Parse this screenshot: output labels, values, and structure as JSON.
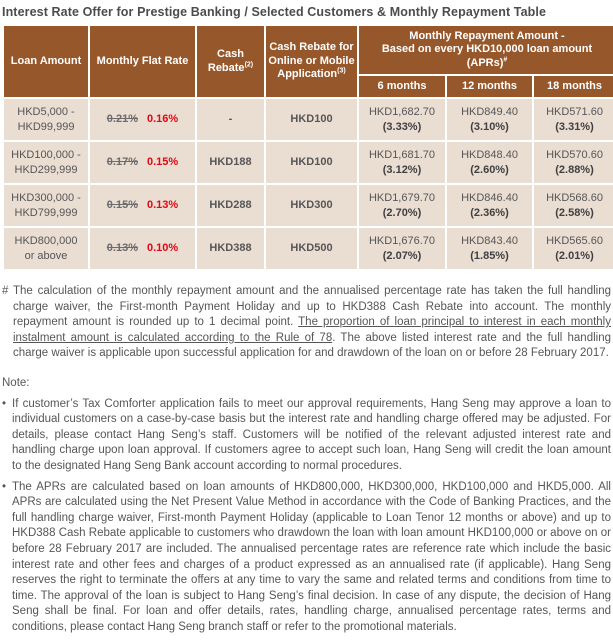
{
  "title": "Interest Rate Offer for Prestige Banking / Selected Customers & Monthly Repayment Table",
  "colors": {
    "header_brown": "#96572A",
    "cell_bg": "#EADDD1",
    "rate_red": "#E30613"
  },
  "table": {
    "headers": {
      "loan_amount": "Loan Amount",
      "monthly_flat_rate": "Monthly Flat Rate",
      "cash_rebate": "Cash Rebate",
      "cash_rebate_sup": "(2)",
      "cash_rebate_online": "Cash Rebate for Online or Mobile Application",
      "cash_rebate_online_sup": "(3)",
      "repayment_title_line1": "Monthly Repayment Amount -",
      "repayment_title_line2": "Based on every HKD10,000 loan amount",
      "repayment_title_line3": "(APRs)",
      "repayment_title_sup": "#",
      "tenors": [
        "6 months",
        "12 months",
        "18 months"
      ]
    },
    "rows": [
      {
        "loan": [
          "HKD5,000 -",
          "HKD99,999"
        ],
        "rate_old": "0.21%",
        "rate_new": "0.16%",
        "cash_rebate": "-",
        "online_rebate": "HKD100",
        "m6": {
          "amount": "HKD1,682.70",
          "apr": "(3.33%)"
        },
        "m12": {
          "amount": "HKD849.40",
          "apr": "(3.10%)"
        },
        "m18": {
          "amount": "HKD571.60",
          "apr": "(3.31%)"
        }
      },
      {
        "loan": [
          "HKD100,000 -",
          "HKD299,999"
        ],
        "rate_old": "0.17%",
        "rate_new": "0.15%",
        "cash_rebate": "HKD188",
        "online_rebate": "HKD100",
        "m6": {
          "amount": "HKD1,681.70",
          "apr": "(3.12%)"
        },
        "m12": {
          "amount": "HKD848.40",
          "apr": "(2.60%)"
        },
        "m18": {
          "amount": "HKD570.60",
          "apr": "(2.88%)"
        }
      },
      {
        "loan": [
          "HKD300,000 -",
          "HKD799,999"
        ],
        "rate_old": "0.15%",
        "rate_new": "0.13%",
        "cash_rebate": "HKD288",
        "online_rebate": "HKD300",
        "m6": {
          "amount": "HKD1,679.70",
          "apr": "(2.70%)"
        },
        "m12": {
          "amount": "HKD846.40",
          "apr": "(2.36%)"
        },
        "m18": {
          "amount": "HKD568.60",
          "apr": "(2.58%)"
        }
      },
      {
        "loan": [
          "HKD800,000",
          "or above"
        ],
        "rate_old": "0.13%",
        "rate_new": "0.10%",
        "cash_rebate": "HKD388",
        "online_rebate": "HKD500",
        "m6": {
          "amount": "HKD1,676.70",
          "apr": "(2.07%)"
        },
        "m12": {
          "amount": "HKD843.40",
          "apr": "(1.85%)"
        },
        "m18": {
          "amount": "HKD565.60",
          "apr": "(2.01%)"
        }
      }
    ]
  },
  "footnote": {
    "marker": "#",
    "text_before": "The calculation of the monthly repayment amount and the annualised percentage rate has taken the full handling charge waiver, the First-month Payment Holiday and up to HKD388 Cash Rebate into account. The monthly repayment amount is rounded up to 1 decimal point. ",
    "text_underlined": "The proportion of loan principal to interest in each monthly instalment amount is calculated according to the Rule of 78",
    "text_after": ". The above listed interest rate and the full handling charge waiver is applicable upon successful application for and drawdown of the loan on or before 28 February 2017."
  },
  "note": {
    "label": "Note:",
    "bullets": [
      {
        "marker": "•",
        "text": "If customer’s Tax Comforter application fails to meet our approval requirements, Hang Seng may approve a loan to individual customers on a case-by-case basis but the interest rate and handling charge offered may be adjusted. For details, please contact Hang Seng’s staff. Customers will be notified of the relevant adjusted interest rate and handling charge upon loan approval. If customers agree to accept such loan, Hang Seng will credit the loan amount to the designated Hang Seng Bank account according to normal procedures."
      },
      {
        "marker": "•",
        "text": "The APRs are calculated based on loan amounts of HKD800,000, HKD300,000, HKD100,000 and HKD5,000. All APRs are calculated using the Net Present Value Method in accordance with the Code of Banking Practices, and the full handling charge waiver, First-month Payment Holiday (applicable to Loan Tenor 12 months or above) and up to HKD388 Cash Rebate applicable to customers who drawdown the loan with loan amount HKD100,000 or above on or before 28 February 2017 are included. The annualised percentage rates are reference rate which include the basic interest rate and other fees and charges of a product expressed as an annualised rate (if applicable). Hang Seng reserves the right to terminate the offers at any time to vary the same and related terms and conditions from time to time. The approval of the loan is subject to Hang Seng’s final decision. In case of any dispute, the decision of Hang Seng shall be final. For loan and offer details, rates, handling charge, annualised percentage rates, terms and conditions, please contact Hang Seng branch staff or refer to the promotional materials."
      }
    ]
  }
}
